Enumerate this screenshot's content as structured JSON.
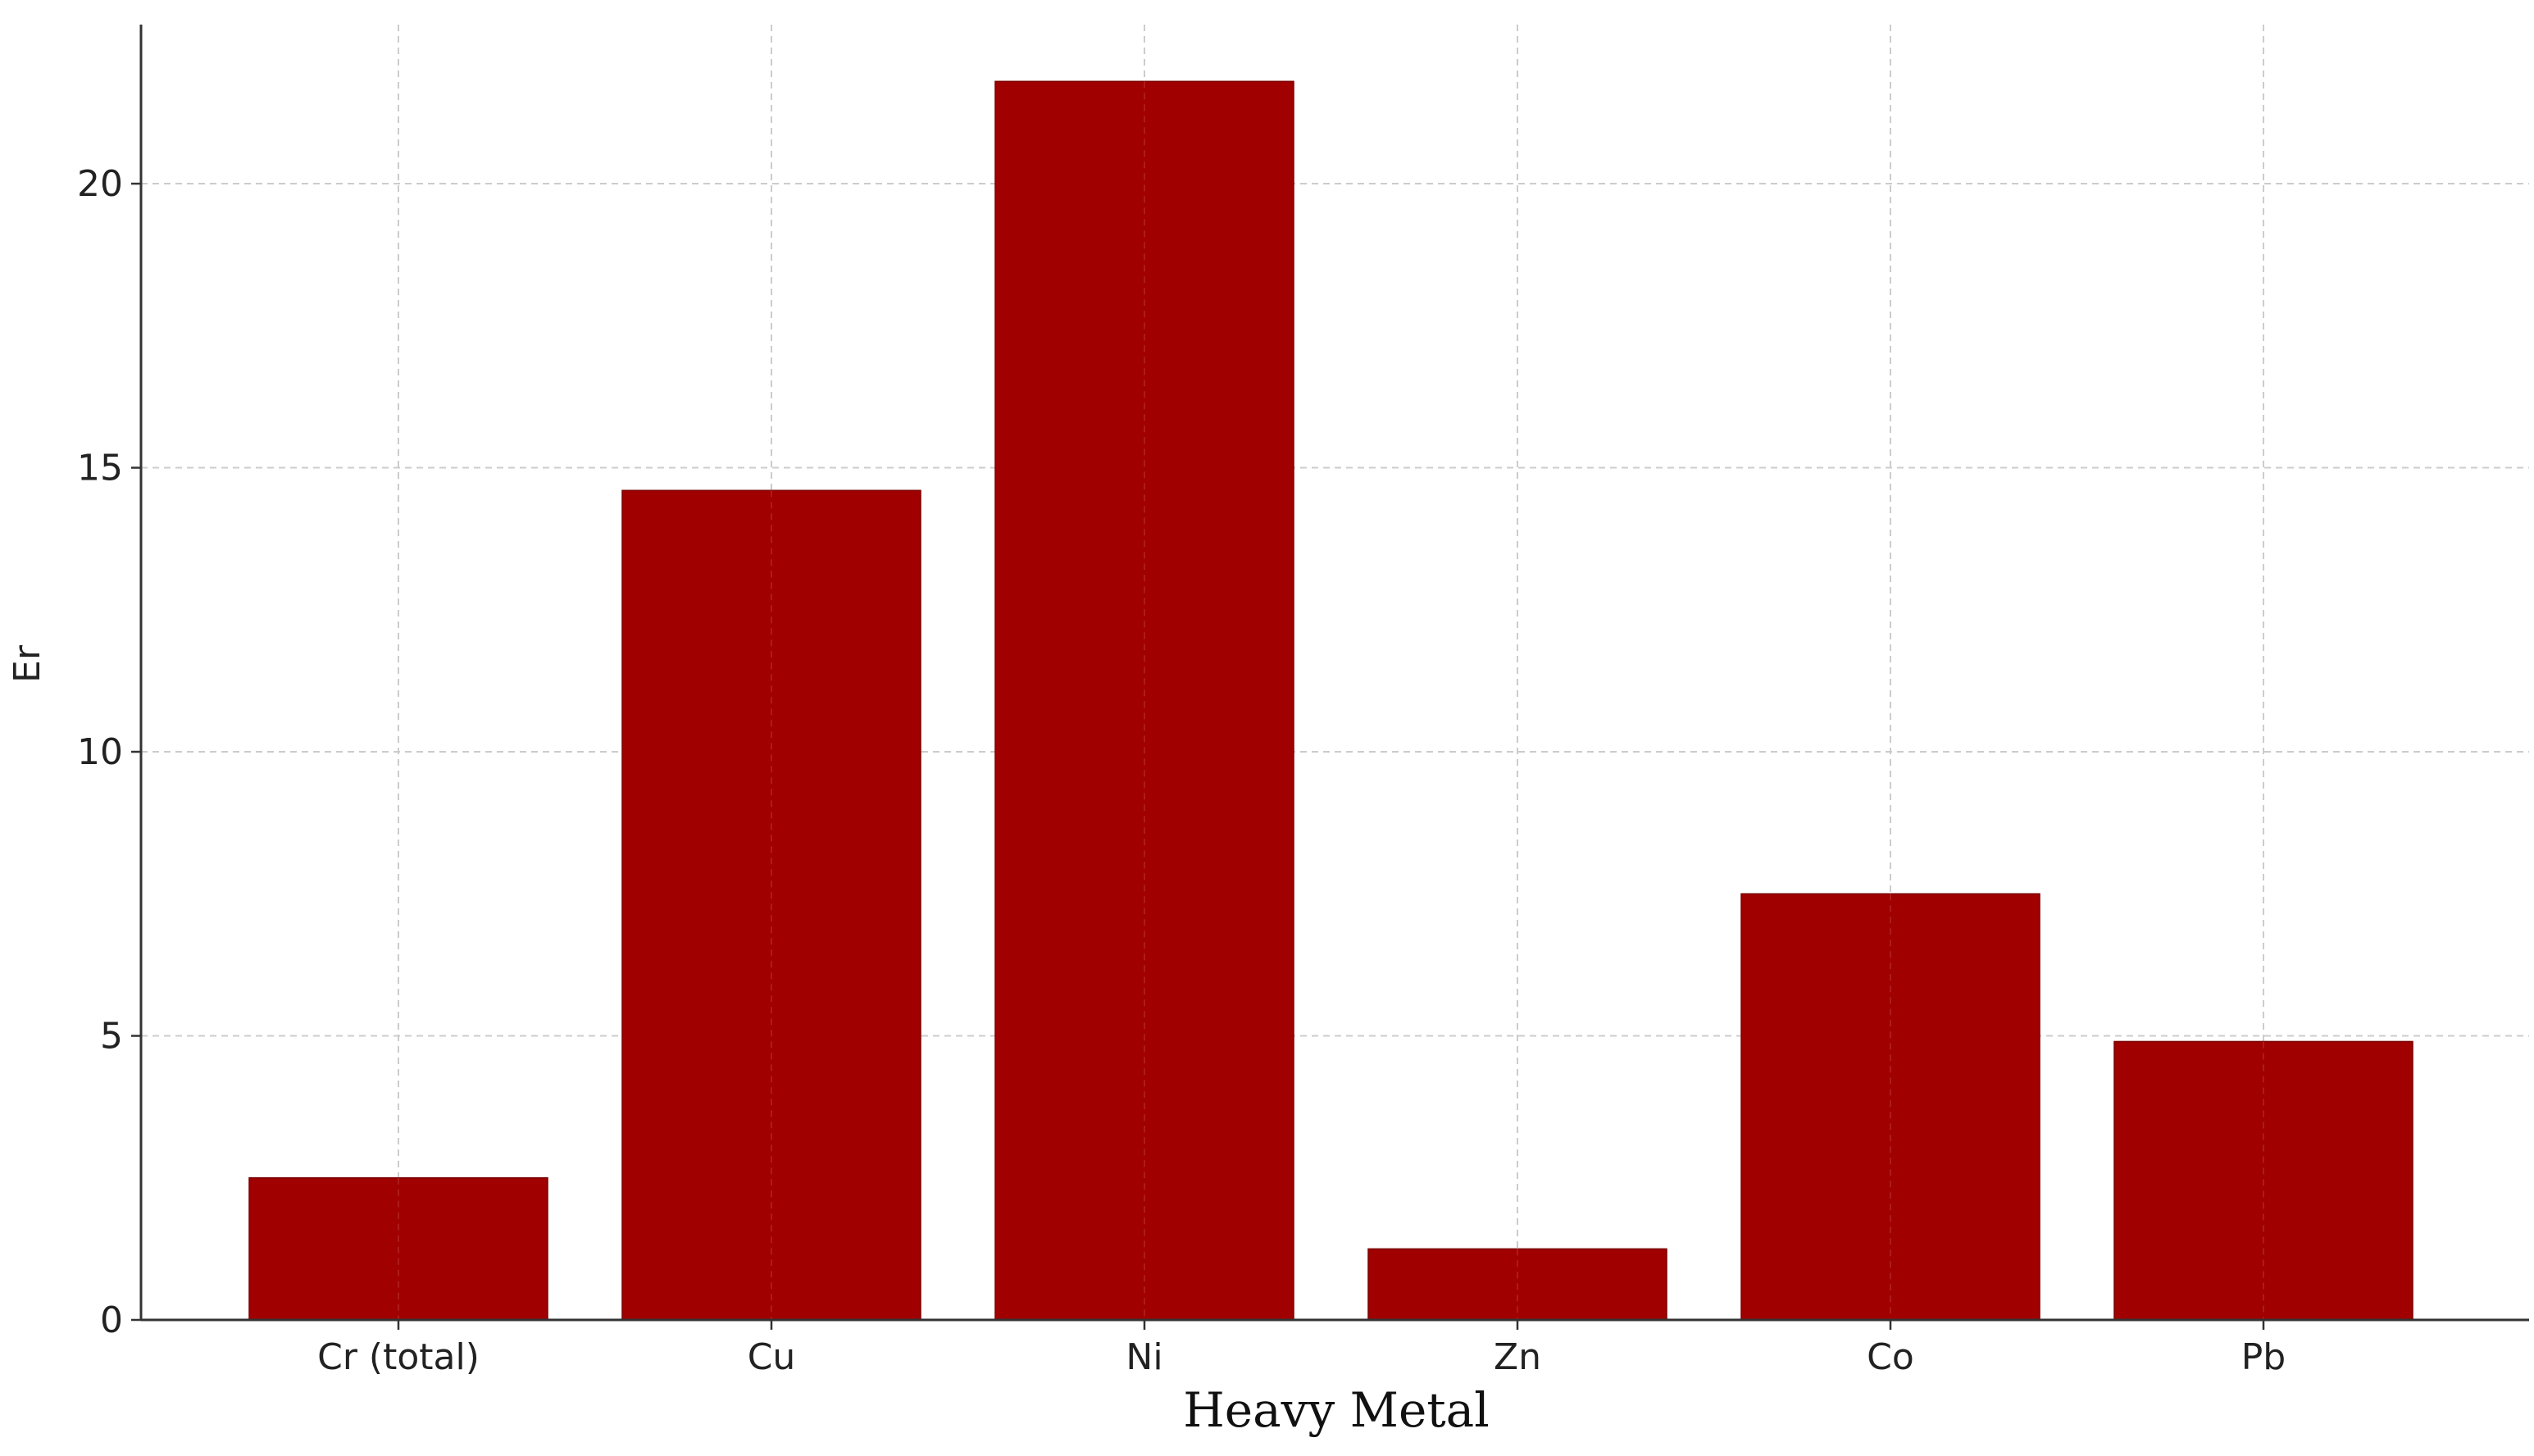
{
  "chart_data": {
    "type": "bar",
    "title": "",
    "xlabel": "Heavy Metal",
    "ylabel": "Er",
    "categories": [
      "Cr (total)",
      "Cu",
      "Ni",
      "Zn",
      "Co",
      "Pb"
    ],
    "values": [
      2.5,
      14.6,
      21.8,
      1.25,
      7.5,
      4.9
    ],
    "ylim": [
      0,
      22.8
    ],
    "yticks": [
      0,
      5,
      10,
      15,
      20
    ],
    "grid": true,
    "legend": "none",
    "bar_color": "#a00000",
    "grid_color": "#cccccc"
  }
}
